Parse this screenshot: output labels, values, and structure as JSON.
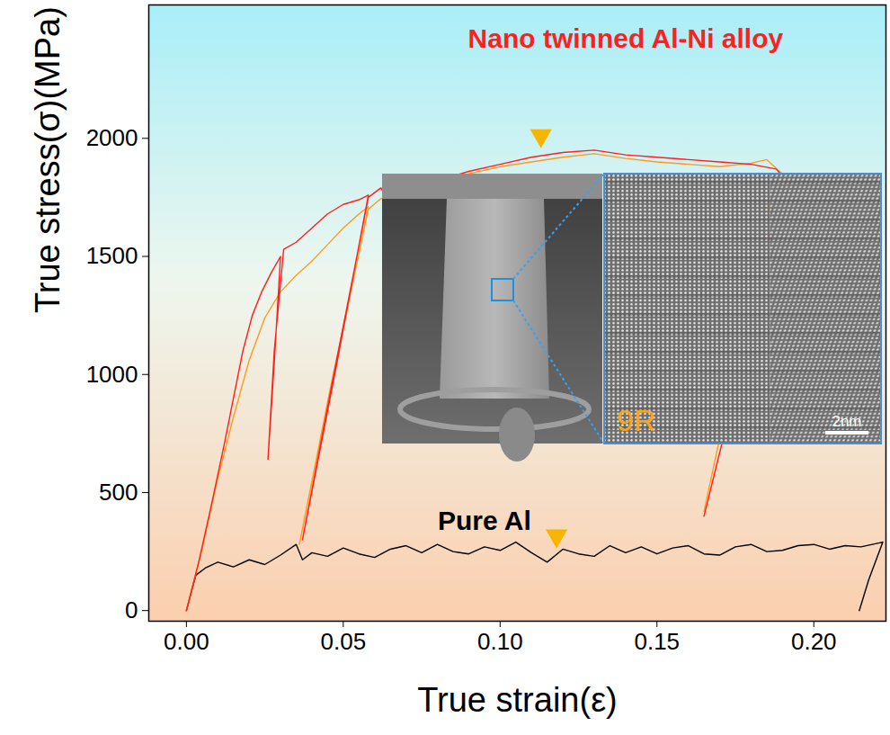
{
  "chart_data": {
    "type": "line",
    "xlabel": "True strain(ε)",
    "ylabel": "True stress(σ)(MPa)",
    "xlim": [
      -0.012,
      0.223
    ],
    "ylim": [
      -45,
      2565
    ],
    "xticks": [
      {
        "value": 0,
        "label": "0.00"
      },
      0.05,
      {
        "value": 0.1,
        "label": "0.10"
      },
      0.15,
      {
        "value": 0.2,
        "label": "0.20"
      }
    ],
    "yticks": [
      0,
      500,
      1000,
      1500,
      2000
    ],
    "grid": false,
    "series": [
      {
        "color": "#000000",
        "x": [
          0,
          0.003,
          0.006,
          0.01,
          0.015,
          0.02,
          0.025,
          0.03,
          0.035,
          0.037,
          0.04,
          0.045,
          0.05,
          0.055,
          0.06,
          0.065,
          0.07,
          0.075,
          0.08,
          0.085,
          0.09,
          0.095,
          0.1,
          0.105,
          0.11,
          0.115,
          0.12,
          0.125,
          0.13,
          0.135,
          0.14,
          0.145,
          0.15,
          0.155,
          0.16,
          0.165,
          0.17,
          0.175,
          0.18,
          0.185,
          0.19,
          0.195,
          0.2,
          0.205,
          0.21,
          0.215,
          0.222,
          0.2175,
          0.2145
        ],
        "values": [
          0,
          150,
          180,
          205,
          185,
          215,
          195,
          235,
          280,
          215,
          245,
          230,
          265,
          240,
          225,
          260,
          275,
          245,
          280,
          250,
          240,
          270,
          255,
          290,
          245,
          205,
          260,
          240,
          230,
          275,
          245,
          270,
          240,
          265,
          275,
          240,
          235,
          270,
          280,
          250,
          255,
          275,
          280,
          260,
          275,
          270,
          290,
          130,
          0
        ]
      },
      {
        "color": "#ff9a1f",
        "x": [
          0,
          0.005,
          0.01,
          0.015,
          0.02,
          0.025,
          0.03,
          0.035,
          0.04,
          0.045,
          0.05,
          0.055,
          0.058,
          0.047,
          0.036,
          0.046,
          0.058,
          0.062,
          0.07,
          0.08,
          0.09,
          0.1,
          0.11,
          0.12,
          0.13,
          0.14,
          0.15,
          0.16,
          0.17,
          0.18,
          0.185,
          0.19,
          0.188,
          0.176,
          0.165
        ],
        "values": [
          0,
          260,
          560,
          820,
          1060,
          1240,
          1350,
          1420,
          1480,
          1550,
          1620,
          1680,
          1710,
          1000,
          280,
          950,
          1700,
          1745,
          1770,
          1810,
          1850,
          1880,
          1900,
          1920,
          1935,
          1915,
          1900,
          1890,
          1880,
          1895,
          1910,
          1850,
          1830,
          1100,
          420
        ]
      },
      {
        "color": "#ff1f1f",
        "x": [
          0,
          0.004,
          0.008,
          0.012,
          0.015,
          0.018,
          0.021,
          0.024,
          0.027,
          0.03,
          0.028,
          0.026,
          0.028,
          0.031,
          0.035,
          0.04,
          0.045,
          0.05,
          0.055,
          0.058,
          0.048,
          0.037,
          0.047,
          0.058,
          0.062,
          0.065,
          0.07,
          0.08,
          0.09,
          0.1,
          0.11,
          0.12,
          0.13,
          0.14,
          0.15,
          0.16,
          0.17,
          0.18,
          0.188,
          0.19,
          0.19,
          0.178,
          0.165
        ],
        "values": [
          0,
          210,
          450,
          700,
          900,
          1100,
          1250,
          1350,
          1430,
          1500,
          1050,
          640,
          1100,
          1530,
          1560,
          1620,
          1680,
          1720,
          1740,
          1760,
          1050,
          300,
          1000,
          1750,
          1790,
          1720,
          1760,
          1820,
          1860,
          1890,
          1920,
          1940,
          1950,
          1930,
          1920,
          1910,
          1900,
          1890,
          1870,
          1840,
          1820,
          1100,
          400
        ]
      }
    ],
    "annotations": [
      {
        "text": "Nano twinned Al-Ni alloy",
        "x": 0.14,
        "y": 2420,
        "color": "#ff1f1f",
        "point": [
          0.113,
          1985
        ]
      },
      {
        "text": "Pure Al",
        "x": 0.095,
        "y": 380,
        "color": "#000000",
        "point": [
          0.118,
          290
        ]
      }
    ],
    "insets": [
      {
        "label": "9R",
        "scale_bar": "2nm"
      }
    ]
  }
}
